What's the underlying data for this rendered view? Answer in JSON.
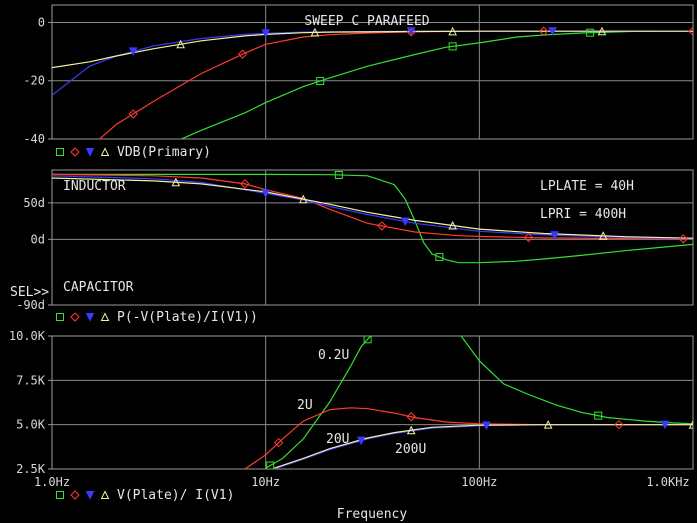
{
  "x_axis": {
    "label": "Frequency",
    "ticks": [
      {
        "value": 1,
        "label": "1.0Hz"
      },
      {
        "value": 10,
        "label": "10Hz"
      },
      {
        "value": 100,
        "label": "100Hz"
      },
      {
        "value": 1000,
        "label": "1.0KHz"
      }
    ]
  },
  "colors": {
    "green": "#33e033",
    "red": "#ff3b2e",
    "blue": "#3a3aff",
    "yellow": "#f3f3a0",
    "grid": "#8a8a8a",
    "text": "#e6e6e6"
  },
  "chart_data": [
    {
      "type": "line",
      "title": "SWEEP C PARAFEED",
      "legend_label": "VDB(Primary)",
      "xscale": "log",
      "xlim": [
        1,
        1000
      ],
      "ylim": [
        -40,
        6
      ],
      "yticks": [
        {
          "value": 0,
          "label": "0"
        },
        {
          "value": -20,
          "label": "-20"
        },
        {
          "value": -40,
          "label": "-40"
        }
      ],
      "series": [
        {
          "color": "green",
          "marker": "square",
          "x": [
            1,
            2,
            3.5,
            5,
            8,
            10,
            15,
            20,
            30,
            50,
            70,
            100,
            150,
            200,
            300,
            500,
            700,
            1000
          ],
          "y": [
            -58,
            -50,
            -42,
            -37,
            -31,
            -27.5,
            -22,
            -19,
            -15,
            -11,
            -8.5,
            -7,
            -5,
            -4.3,
            -3.6,
            -3.1,
            -3,
            -3
          ]
        },
        {
          "color": "red",
          "marker": "diamond",
          "x": [
            1,
            1.5,
            2,
            3,
            5,
            8,
            10,
            15,
            20,
            30,
            50,
            100,
            200,
            500,
            1000
          ],
          "y": [
            -56,
            -43,
            -35,
            -27,
            -17.5,
            -10.5,
            -7.5,
            -5,
            -4.2,
            -3.6,
            -3.2,
            -3,
            -3,
            -3,
            -3
          ]
        },
        {
          "color": "blue",
          "marker": "triangle-down",
          "x": [
            1,
            1.5,
            2,
            3,
            5,
            8,
            10,
            15,
            20,
            50,
            100,
            200,
            500,
            1000
          ],
          "y": [
            -25,
            -15,
            -11.5,
            -8,
            -5.5,
            -4.1,
            -3.7,
            -3.3,
            -3.2,
            -3,
            -3,
            -3,
            -3,
            -3
          ]
        },
        {
          "color": "yellow",
          "marker": "triangle-up",
          "x": [
            1,
            1.5,
            2,
            3,
            5,
            8,
            10,
            15,
            20,
            50,
            100,
            200,
            500,
            1000
          ],
          "y": [
            -15.5,
            -13.5,
            -11.5,
            -9,
            -6.3,
            -4.6,
            -4.1,
            -3.5,
            -3.3,
            -3.1,
            -3,
            -3,
            -3,
            -3
          ]
        }
      ],
      "markers": [
        {
          "color": "green",
          "x": [
            3.7,
            18,
            75,
            330
          ],
          "shape": "square"
        },
        {
          "color": "red",
          "x": [
            2.4,
            7.8,
            48,
            200,
            1000
          ],
          "shape": "diamond"
        },
        {
          "color": "blue",
          "x": [
            2.4,
            10,
            48,
            220
          ],
          "shape": "triangle-down"
        },
        {
          "color": "yellow",
          "x": [
            4,
            17,
            75,
            375
          ],
          "shape": "triangle-up"
        }
      ]
    },
    {
      "type": "line",
      "legend_label": "P(-V(Plate)/I(V1))",
      "xscale": "log",
      "xlim": [
        1,
        1000
      ],
      "ylim": [
        -90,
        95
      ],
      "yticks": [
        {
          "value": 50,
          "label": "50d"
        },
        {
          "value": 0,
          "label": "0d"
        },
        {
          "value": -90,
          "label": "-90d"
        }
      ],
      "annotations": [
        "INDUCTOR",
        "CAPACITOR",
        "LPLATE = 40H",
        "LPRI = 400H"
      ],
      "sel_label": "SEL>>",
      "series": [
        {
          "color": "green",
          "x": [
            1,
            5,
            10,
            20,
            30,
            40,
            45,
            50,
            55,
            60,
            70,
            80,
            100,
            150,
            200,
            300,
            500,
            1000
          ],
          "y": [
            89,
            89,
            89,
            88.5,
            87,
            75,
            55,
            25,
            -5,
            -20,
            -28,
            -32,
            -32,
            -30,
            -27,
            -22,
            -15,
            -7
          ]
        },
        {
          "color": "red",
          "x": [
            1,
            3,
            5,
            8,
            10,
            15,
            20,
            30,
            50,
            80,
            100,
            200,
            500,
            1000
          ],
          "y": [
            89,
            87,
            84,
            76,
            68,
            56,
            41,
            22,
            10,
            5,
            4,
            2,
            1,
            0.5
          ]
        },
        {
          "color": "blue",
          "x": [
            1,
            3,
            5,
            10,
            15,
            20,
            30,
            50,
            100,
            200,
            500,
            1000
          ],
          "y": [
            87,
            83,
            78,
            63,
            54,
            45,
            34,
            22,
            11,
            6,
            2.5,
            1
          ]
        },
        {
          "color": "yellow",
          "x": [
            1,
            3,
            5,
            10,
            15,
            20,
            30,
            50,
            100,
            200,
            500,
            1000
          ],
          "y": [
            84,
            80,
            76,
            65,
            55,
            48,
            37,
            26,
            14,
            8,
            3.5,
            1.5
          ]
        }
      ],
      "markers": [
        {
          "color": "green",
          "x": [
            22,
            65
          ],
          "shape": "square"
        },
        {
          "color": "red",
          "x": [
            8,
            35,
            170,
            900
          ],
          "shape": "diamond"
        },
        {
          "color": "blue",
          "x": [
            10,
            45,
            225
          ],
          "shape": "triangle-down"
        },
        {
          "color": "yellow",
          "x": [
            3.8,
            15,
            75,
            380
          ],
          "shape": "triangle-up"
        }
      ]
    },
    {
      "type": "line",
      "legend_label": "V(Plate)/ I(V1)",
      "xscale": "log",
      "xlim": [
        1,
        1000
      ],
      "ylim": [
        2500,
        10000
      ],
      "yticks": [
        {
          "value": 10000,
          "label": "10.0K"
        },
        {
          "value": 7500,
          "label": "7.5K"
        },
        {
          "value": 5000,
          "label": "5.0K"
        },
        {
          "value": 2500,
          "label": "2.5K"
        }
      ],
      "annotations": [
        "0.2U",
        "2U",
        "20U",
        "200U"
      ],
      "series": [
        {
          "color": "green",
          "segments": [
            {
              "x": [
                10,
                12,
                15,
                20,
                25,
                28,
                32
              ],
              "y": [
                2550,
                3100,
                4200,
                6300,
                8300,
                9400,
                10200
              ]
            },
            {
              "x": [
                80,
                100,
                130,
                170,
                230,
                300,
                400,
                600,
                800,
                1000
              ],
              "y": [
                10200,
                8600,
                7300,
                6700,
                6100,
                5700,
                5400,
                5200,
                5100,
                5050
              ]
            }
          ]
        },
        {
          "color": "red",
          "x": [
            8,
            10,
            12,
            15,
            20,
            25,
            30,
            40,
            50,
            70,
            100,
            200,
            500,
            1000
          ],
          "y": [
            2500,
            3300,
            4200,
            5200,
            5850,
            5950,
            5900,
            5650,
            5400,
            5150,
            5050,
            5000,
            5000,
            5000
          ]
        },
        {
          "color": "blue",
          "x": [
            11,
            15,
            20,
            30,
            40,
            60,
            100,
            200,
            500,
            1000
          ],
          "y": [
            2500,
            3050,
            3600,
            4200,
            4500,
            4800,
            4950,
            5000,
            5000,
            5000
          ]
        },
        {
          "color": "yellow",
          "x": [
            11,
            15,
            20,
            30,
            40,
            60,
            100,
            200,
            500,
            1000
          ],
          "y": [
            2550,
            3100,
            3650,
            4250,
            4550,
            4850,
            4970,
            5000,
            5000,
            5000
          ]
        }
      ],
      "markers": [
        {
          "color": "green",
          "x": [
            10.5,
            30,
            360
          ],
          "shape": "square"
        },
        {
          "color": "red",
          "x": [
            11.5,
            48,
            450
          ],
          "shape": "diamond"
        },
        {
          "color": "blue",
          "x": [
            28,
            108,
            740
          ],
          "shape": "triangle-down"
        },
        {
          "color": "yellow",
          "x": [
            48,
            210,
            1000
          ],
          "shape": "triangle-up"
        }
      ]
    }
  ]
}
